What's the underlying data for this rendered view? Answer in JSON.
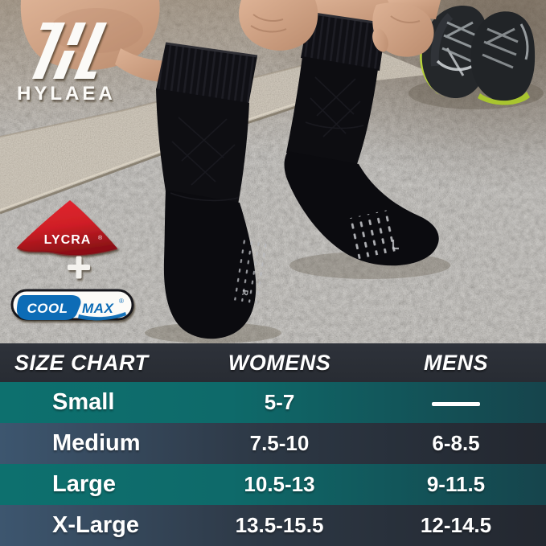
{
  "brand": {
    "name": "HYLAEA"
  },
  "material_badges": {
    "lycra": {
      "label": "LYCRA",
      "reg": "®"
    },
    "plus_icon": "+",
    "coolmax": {
      "cool": "COOL",
      "max": "MAX",
      "reg": "®"
    }
  },
  "photo": {
    "sock_marking_left": "R"
  },
  "size_chart": {
    "title": "SIZE CHART",
    "columns": [
      "WOMENS",
      "MENS"
    ],
    "rows": [
      {
        "size": "Small",
        "womens": "5-7",
        "mens": "—"
      },
      {
        "size": "Medium",
        "womens": "7.5-10",
        "mens": "6-8.5"
      },
      {
        "size": "Large",
        "womens": "10.5-13",
        "mens": "9-11.5"
      },
      {
        "size": "X-Large",
        "womens": "13.5-15.5",
        "mens": "12-14.5"
      }
    ]
  },
  "chart_data": {
    "type": "table",
    "title": "SIZE CHART",
    "columns": [
      "SIZE",
      "WOMENS",
      "MENS"
    ],
    "rows": [
      [
        "Small",
        "5-7",
        "—"
      ],
      [
        "Medium",
        "7.5-10",
        "6-8.5"
      ],
      [
        "Large",
        "10.5-13",
        "9-11.5"
      ],
      [
        "X-Large",
        "13.5-15.5",
        "12-14.5"
      ]
    ]
  },
  "colors": {
    "header_bg": "#2b2f36",
    "row_teal_left": "#0d706e",
    "row_teal_right": "#16444c",
    "row_slate_left": "#3d566f",
    "row_slate_right": "#23272f",
    "table_text": "#ffffff",
    "lycra_red": "#cf1f26",
    "coolmax_blue": "#0d6cb6",
    "neon_sole": "#b7d23a",
    "sock_black": "#0c0c0f",
    "logo_white": "#fbfaf7"
  }
}
